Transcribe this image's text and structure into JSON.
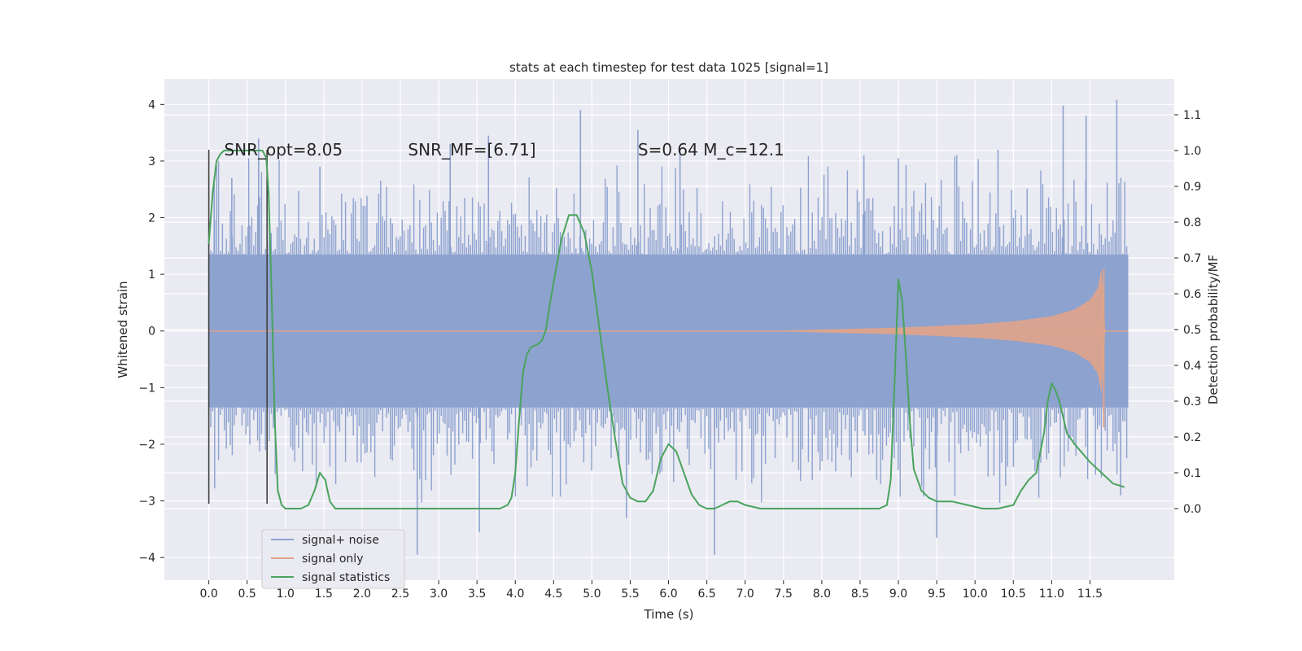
{
  "chart_data": {
    "type": "line",
    "title": "stats at each timestep for test data 1025 [signal=1]",
    "xlabel": "Time (s)",
    "ylabel": "Whitened strain",
    "y2label": "Detection probability/MF",
    "xlim": [
      -0.58,
      12.6
    ],
    "ylim": [
      -4.4,
      4.45
    ],
    "y2lim": [
      -0.2,
      1.2
    ],
    "xticks": [
      0.0,
      0.5,
      1.0,
      1.5,
      2.0,
      2.5,
      3.0,
      3.5,
      4.0,
      4.5,
      5.0,
      5.5,
      6.0,
      6.5,
      7.0,
      7.5,
      8.0,
      8.5,
      9.0,
      9.5,
      10.0,
      10.5,
      11.0,
      11.5
    ],
    "xtick_labels": [
      "0.0",
      "0.5",
      "1.0",
      "1.5",
      "2.0",
      "2.5",
      "3.0",
      "3.5",
      "4.0",
      "4.5",
      "5.0",
      "5.5",
      "6.0",
      "6.5",
      "7.0",
      "7.5",
      "8.0",
      "8.5",
      "9.0",
      "9.5",
      "10.0",
      "10.5",
      "11.0",
      "11.5"
    ],
    "yticks": [
      -4,
      -3,
      -2,
      -1,
      0,
      1,
      2,
      3,
      4
    ],
    "ytick_labels": [
      "−4",
      "−3",
      "−2",
      "−1",
      "0",
      "1",
      "2",
      "3",
      "4"
    ],
    "y2ticks": [
      0.0,
      0.1,
      0.2,
      0.3,
      0.4,
      0.5,
      0.6,
      0.7,
      0.8,
      0.9,
      1.0,
      1.1
    ],
    "y2tick_labels": [
      "0.0",
      "0.1",
      "0.2",
      "0.3",
      "0.4",
      "0.5",
      "0.6",
      "0.7",
      "0.8",
      "0.9",
      "1.0",
      "1.1"
    ],
    "grid": true,
    "legend_position": "bottom-left",
    "annotations": [
      {
        "text": "SNR_opt=8.05",
        "x": 0.2,
        "y": 3.1
      },
      {
        "text": "SNR_MF=[6.71]",
        "x": 2.6,
        "y": 3.1
      },
      {
        "text": "S=0.64   M_c=12.1",
        "x": 5.6,
        "y": 3.1
      }
    ],
    "markers": [
      {
        "name": "window-start",
        "x": 0.0,
        "y_from": -3.05,
        "y_to": 3.2
      },
      {
        "name": "window-end",
        "x": 0.76,
        "y_from": -3.05,
        "y_to": 3.2
      }
    ],
    "series": [
      {
        "name": "signal+ noise",
        "color": "#8da2cf",
        "style": "noise-band",
        "x_range": [
          0.0,
          12.0
        ],
        "band_lower": -1.35,
        "band_upper": 1.35,
        "spike_range": [
          -4.0,
          4.1
        ],
        "values": [
          [
            0.07,
            2.6
          ],
          [
            0.3,
            2.7
          ],
          [
            0.52,
            3.05
          ],
          [
            0.65,
            3.4
          ],
          [
            1.45,
            2.9
          ],
          [
            2.72,
            -3.95
          ],
          [
            3.15,
            3.3
          ],
          [
            3.53,
            -3.55
          ],
          [
            3.65,
            3.45
          ],
          [
            4.85,
            3.9
          ],
          [
            5.45,
            -3.3
          ],
          [
            5.6,
            3.55
          ],
          [
            6.15,
            3.15
          ],
          [
            6.6,
            -3.95
          ],
          [
            8.55,
            3.1
          ],
          [
            9.0,
            3.05
          ],
          [
            9.5,
            -3.65
          ],
          [
            10.3,
            3.2
          ],
          [
            11.15,
            3.98
          ],
          [
            11.45,
            3.8
          ],
          [
            11.85,
            4.08
          ],
          [
            11.9,
            -2.9
          ]
        ]
      },
      {
        "name": "signal only",
        "color": "#e0a48a",
        "style": "chirp",
        "x": [
          0.0,
          7.5,
          9.0,
          10.0,
          10.5,
          11.0,
          11.3,
          11.5,
          11.6,
          11.65,
          11.7,
          11.75,
          12.0
        ],
        "amplitude": [
          0.005,
          0.01,
          0.06,
          0.12,
          0.17,
          0.26,
          0.38,
          0.55,
          0.75,
          1.1,
          0.0,
          0.0,
          0.0
        ]
      },
      {
        "name": "signal statistics",
        "color": "#4aa35d",
        "style": "line",
        "axis": "y2",
        "x": [
          0.0,
          0.05,
          0.1,
          0.15,
          0.2,
          0.3,
          0.4,
          0.5,
          0.6,
          0.7,
          0.75,
          0.78,
          0.82,
          0.86,
          0.9,
          0.95,
          1.0,
          1.1,
          1.2,
          1.3,
          1.38,
          1.45,
          1.52,
          1.58,
          1.65,
          1.8,
          2.0,
          2.5,
          3.0,
          3.5,
          3.8,
          3.9,
          3.95,
          4.0,
          4.05,
          4.1,
          4.15,
          4.2,
          4.3,
          4.35,
          4.4,
          4.45,
          4.5,
          4.6,
          4.7,
          4.8,
          4.9,
          5.0,
          5.1,
          5.2,
          5.3,
          5.4,
          5.5,
          5.6,
          5.7,
          5.8,
          5.9,
          6.0,
          6.1,
          6.2,
          6.3,
          6.4,
          6.5,
          6.6,
          6.7,
          6.8,
          6.9,
          7.0,
          7.2,
          7.5,
          8.0,
          8.5,
          8.75,
          8.85,
          8.9,
          8.95,
          9.0,
          9.05,
          9.1,
          9.15,
          9.2,
          9.3,
          9.4,
          9.5,
          9.7,
          9.9,
          10.1,
          10.3,
          10.5,
          10.6,
          10.7,
          10.8,
          10.9,
          10.95,
          11.0,
          11.05,
          11.1,
          11.2,
          11.3,
          11.5,
          11.7,
          11.8,
          11.95
        ],
        "values": [
          0.74,
          0.88,
          0.97,
          0.99,
          1.0,
          1.0,
          1.0,
          1.0,
          1.0,
          1.0,
          0.98,
          0.88,
          0.6,
          0.25,
          0.05,
          0.01,
          0.0,
          0.0,
          0.0,
          0.01,
          0.05,
          0.1,
          0.08,
          0.02,
          0.0,
          0.0,
          0.0,
          0.0,
          0.0,
          0.0,
          0.0,
          0.01,
          0.03,
          0.1,
          0.25,
          0.38,
          0.43,
          0.45,
          0.46,
          0.47,
          0.5,
          0.57,
          0.63,
          0.75,
          0.82,
          0.82,
          0.77,
          0.66,
          0.5,
          0.34,
          0.2,
          0.07,
          0.03,
          0.02,
          0.02,
          0.05,
          0.14,
          0.18,
          0.16,
          0.1,
          0.04,
          0.01,
          0.0,
          0.0,
          0.01,
          0.02,
          0.02,
          0.01,
          0.0,
          0.0,
          0.0,
          0.0,
          0.0,
          0.01,
          0.08,
          0.35,
          0.64,
          0.58,
          0.42,
          0.24,
          0.11,
          0.05,
          0.03,
          0.02,
          0.02,
          0.01,
          0.0,
          0.0,
          0.01,
          0.05,
          0.08,
          0.1,
          0.21,
          0.3,
          0.35,
          0.33,
          0.3,
          0.21,
          0.18,
          0.13,
          0.09,
          0.07,
          0.06
        ]
      }
    ]
  }
}
